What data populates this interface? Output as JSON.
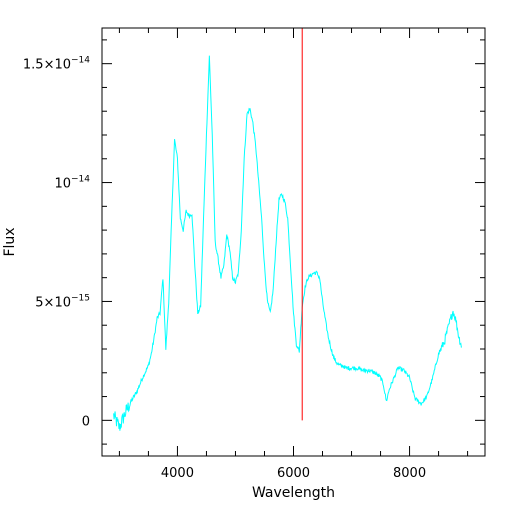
{
  "chart_data": {
    "type": "line",
    "title": "",
    "xlabel": "Wavelength",
    "ylabel": "Flux",
    "xlim": [
      2700,
      9300
    ],
    "ylim": [
      -1.5e-15,
      1.65e-14
    ],
    "grid": false,
    "x_ticks": [
      {
        "value": 4000,
        "label": "4000"
      },
      {
        "value": 6000,
        "label": "6000"
      },
      {
        "value": 8000,
        "label": "8000"
      }
    ],
    "y_ticks": [
      {
        "value": 0,
        "mantissa": "0",
        "exponent": ""
      },
      {
        "value": 5e-15,
        "mantissa": "5×10",
        "exponent": "−15"
      },
      {
        "value": 1e-14,
        "mantissa": "10",
        "exponent": "−14"
      },
      {
        "value": 1.5e-14,
        "mantissa": "1.5×10",
        "exponent": "−14"
      }
    ],
    "series": [
      {
        "color": "#00ffff",
        "x": [
          2900,
          3000,
          3100,
          3200,
          3300,
          3400,
          3500,
          3550,
          3600,
          3650,
          3700,
          3750,
          3800,
          3850,
          3900,
          3950,
          4000,
          4050,
          4100,
          4150,
          4200,
          4250,
          4300,
          4350,
          4400,
          4450,
          4500,
          4550,
          4600,
          4650,
          4700,
          4750,
          4800,
          4850,
          4900,
          4950,
          5000,
          5050,
          5100,
          5150,
          5200,
          5250,
          5300,
          5350,
          5400,
          5450,
          5500,
          5550,
          5600,
          5650,
          5700,
          5750,
          5800,
          5850,
          5900,
          5950,
          6000,
          6050,
          6100,
          6150,
          6200,
          6250,
          6300,
          6350,
          6400,
          6450,
          6500,
          6550,
          6600,
          6650,
          6700,
          6750,
          6800,
          6850,
          6900,
          7000,
          7100,
          7200,
          7300,
          7400,
          7500,
          7550,
          7600,
          7650,
          7700,
          7800,
          7900,
          8000,
          8050,
          8100,
          8150,
          8200,
          8300,
          8400,
          8500,
          8600,
          8700,
          8750,
          8800,
          8850,
          8900
        ],
        "y": [
          2e-16,
          -3e-16,
          3e-16,
          8e-16,
          1.2e-15,
          1.8e-15,
          2.3e-15,
          2.8e-15,
          3.5e-15,
          4.3e-15,
          4.5e-15,
          6e-15,
          3e-15,
          5e-15,
          8.5e-15,
          1.18e-14,
          1.1e-14,
          8.5e-15,
          8e-15,
          8.8e-15,
          8.6e-15,
          8.7e-15,
          6.5e-15,
          4.5e-15,
          4.8e-15,
          8.5e-15,
          1.2e-14,
          1.53e-14,
          1.2e-14,
          7.5e-15,
          6.8e-15,
          6e-15,
          6.5e-15,
          7.8e-15,
          7.2e-15,
          6e-15,
          5.8e-15,
          6.2e-15,
          8e-15,
          1.1e-14,
          1.29e-14,
          1.31e-14,
          1.25e-14,
          1.15e-14,
          1e-14,
          8.5e-15,
          6.5e-15,
          5e-15,
          4.5e-15,
          5.5e-15,
          7.5e-15,
          9.3e-15,
          9.5e-15,
          9.2e-15,
          8.5e-15,
          6.5e-15,
          4.5e-15,
          3.2e-15,
          2.9e-15,
          4.8e-15,
          5.6e-15,
          6e-15,
          6.1e-15,
          6.2e-15,
          6.2e-15,
          6e-15,
          5e-15,
          4.2e-15,
          3.5e-15,
          3e-15,
          2.6e-15,
          2.4e-15,
          2.3e-15,
          2.3e-15,
          2.2e-15,
          2.2e-15,
          2.2e-15,
          2.1e-15,
          2.1e-15,
          2e-15,
          1.8e-15,
          1.5e-15,
          8e-16,
          1.3e-15,
          1.6e-15,
          2.2e-15,
          2.1e-15,
          1.8e-15,
          1.3e-15,
          9e-16,
          8e-16,
          7e-16,
          1e-15,
          1.8e-15,
          2.8e-15,
          3.3e-15,
          4.2e-15,
          4.6e-15,
          4.2e-15,
          3.5e-15,
          3.1e-15
        ]
      }
    ],
    "vertical_marker": {
      "x": 6150,
      "y_from": 0,
      "y_to": 1.65e-14,
      "color": "#ff0000"
    }
  }
}
